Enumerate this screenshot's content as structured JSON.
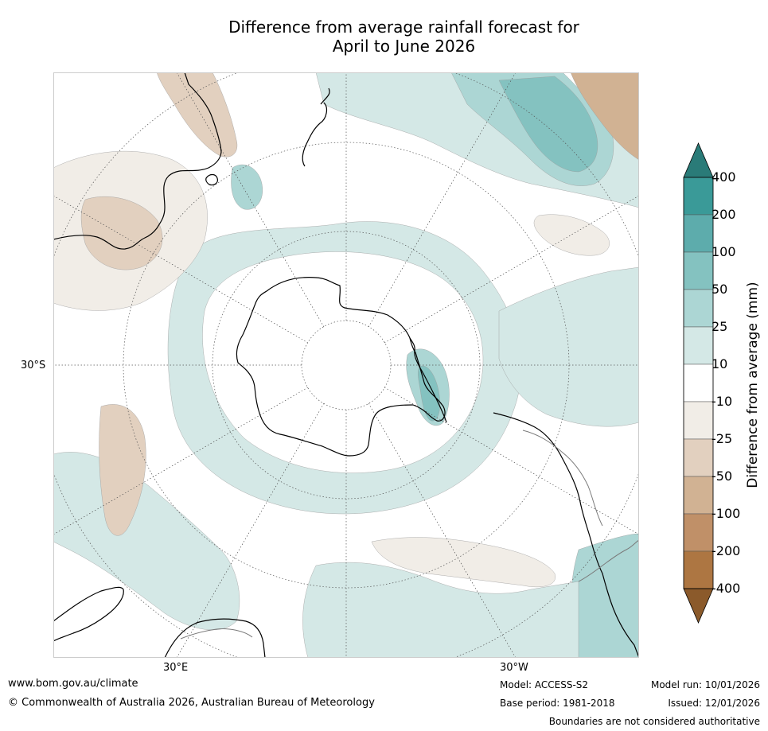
{
  "title": {
    "line1": "Difference from average rainfall forecast for",
    "line2": "April to June 2026"
  },
  "axis_labels": {
    "lat_30s": "30°S",
    "lon_30e": "30°E",
    "lon_30w": "30°W"
  },
  "colorbar": {
    "title": "Difference from average (mm)",
    "ticks": [
      "400",
      "200",
      "100",
      "50",
      "25",
      "10",
      "-10",
      "-25",
      "-50",
      "-100",
      "-200",
      "-400"
    ],
    "bins": [
      {
        "range": ">400",
        "color": "#2a7b78"
      },
      {
        "range": "200 to 400",
        "color": "#3a9a98"
      },
      {
        "range": "100 to 200",
        "color": "#5dacac"
      },
      {
        "range": "50 to 100",
        "color": "#84c2c0"
      },
      {
        "range": "25 to 50",
        "color": "#acd6d4"
      },
      {
        "range": "10 to 25",
        "color": "#d4e8e6"
      },
      {
        "range": "-10 to 10",
        "color": "#ffffff"
      },
      {
        "range": "-25 to -10",
        "color": "#f1ede7"
      },
      {
        "range": "-50 to -25",
        "color": "#e2d0bf"
      },
      {
        "range": "-100 to -50",
        "color": "#d1b293"
      },
      {
        "range": "-200 to -100",
        "color": "#c09068"
      },
      {
        "range": "-400 to -200",
        "color": "#ad7642"
      },
      {
        "range": "<-400",
        "color": "#8b5a2b"
      }
    ]
  },
  "footer": {
    "url": "www.bom.gov.au/climate",
    "copyright": "© Commonwealth of Australia 2026, Australian Bureau of Meteorology",
    "model": "Model: ACCESS-S2",
    "base_period": "Base period: 1981-2018",
    "model_run": "Model run: 10/01/2026",
    "issued": "Issued: 12/01/2026",
    "disclaimer": "Boundaries are not considered authoritative"
  }
}
